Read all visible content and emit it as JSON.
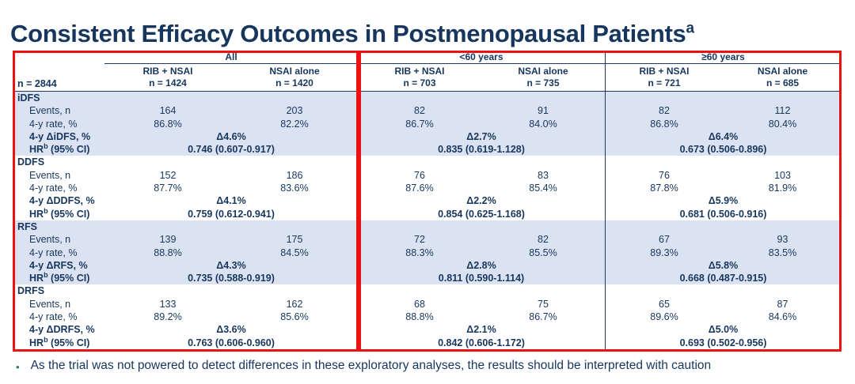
{
  "title": {
    "text": "Consistent Efficacy Outcomes in Postmenopausal Patients",
    "sup": "a"
  },
  "table": {
    "n_label": "n = 2844",
    "groups": [
      {
        "label": "All",
        "cols": [
          {
            "arm": "RIB + NSAI",
            "n": "n = 1424"
          },
          {
            "arm": "NSAI alone",
            "n": "n = 1420"
          }
        ]
      },
      {
        "label": "<60 years",
        "cols": [
          {
            "arm": "RIB + NSAI",
            "n": "n = 703"
          },
          {
            "arm": "NSAI alone",
            "n": "n = 735"
          }
        ]
      },
      {
        "label": "≥60 years",
        "cols": [
          {
            "arm": "RIB + NSAI",
            "n": "n = 721"
          },
          {
            "arm": "NSAI alone",
            "n": "n = 685"
          }
        ]
      }
    ],
    "row_labels": {
      "events": "Events, n",
      "rate": "4-y rate, %",
      "hr_prefix": "HR",
      "hr_sup": "b",
      "hr_suffix": " (95% CI)"
    },
    "sections": [
      {
        "name": "iDFS",
        "delta_label": "4-y ΔiDFS, %",
        "groups": [
          {
            "events": [
              "164",
              "203"
            ],
            "rates": [
              "86.8%",
              "82.2%"
            ],
            "delta": "Δ4.6%",
            "hr": "0.746 (0.607-0.917)"
          },
          {
            "events": [
              "82",
              "91"
            ],
            "rates": [
              "86.7%",
              "84.0%"
            ],
            "delta": "Δ2.7%",
            "hr": "0.835 (0.619-1.128)"
          },
          {
            "events": [
              "82",
              "112"
            ],
            "rates": [
              "86.8%",
              "80.4%"
            ],
            "delta": "Δ6.4%",
            "hr": "0.673 (0.506-0.896)"
          }
        ]
      },
      {
        "name": "DDFS",
        "delta_label": "4-y ΔDDFS, %",
        "groups": [
          {
            "events": [
              "152",
              "186"
            ],
            "rates": [
              "87.7%",
              "83.6%"
            ],
            "delta": "Δ4.1%",
            "hr": "0.759 (0.612-0.941)"
          },
          {
            "events": [
              "76",
              "83"
            ],
            "rates": [
              "87.6%",
              "85.4%"
            ],
            "delta": "Δ2.2%",
            "hr": "0.854 (0.625-1.168)"
          },
          {
            "events": [
              "76",
              "103"
            ],
            "rates": [
              "87.8%",
              "81.9%"
            ],
            "delta": "Δ5.9%",
            "hr": "0.681 (0.506-0.916)"
          }
        ]
      },
      {
        "name": "RFS",
        "delta_label": "4-y ΔRFS, %",
        "groups": [
          {
            "events": [
              "139",
              "175"
            ],
            "rates": [
              "88.8%",
              "84.5%"
            ],
            "delta": "Δ4.3%",
            "hr": "0.735 (0.588-0.919)"
          },
          {
            "events": [
              "72",
              "82"
            ],
            "rates": [
              "88.3%",
              "85.5%"
            ],
            "delta": "Δ2.8%",
            "hr": "0.811 (0.590-1.114)"
          },
          {
            "events": [
              "67",
              "93"
            ],
            "rates": [
              "89.3%",
              "83.5%"
            ],
            "delta": "Δ5.8%",
            "hr": "0.668 (0.487-0.915)"
          }
        ]
      },
      {
        "name": "DRFS",
        "delta_label": "4-y ΔDRFS, %",
        "groups": [
          {
            "events": [
              "133",
              "162"
            ],
            "rates": [
              "89.2%",
              "85.6%"
            ],
            "delta": "Δ3.6%",
            "hr": "0.763 (0.606-0.960)"
          },
          {
            "events": [
              "68",
              "75"
            ],
            "rates": [
              "88.8%",
              "86.7%"
            ],
            "delta": "Δ2.1%",
            "hr": "0.842 (0.606-1.172)"
          },
          {
            "events": [
              "65",
              "87"
            ],
            "rates": [
              "89.6%",
              "84.6%"
            ],
            "delta": "Δ5.0%",
            "hr": "0.693 (0.502-0.956)"
          }
        ]
      }
    ]
  },
  "footnote": {
    "bullet": "•",
    "text": "As the trial was not powered to detect differences in these exploratory analyses, the results should be interpreted with caution"
  },
  "colors": {
    "navy": "#17365d",
    "shaded_band": "#dbe3f2",
    "highlight_red": "#ee1111",
    "bullet_teal": "#1f7a6b"
  }
}
